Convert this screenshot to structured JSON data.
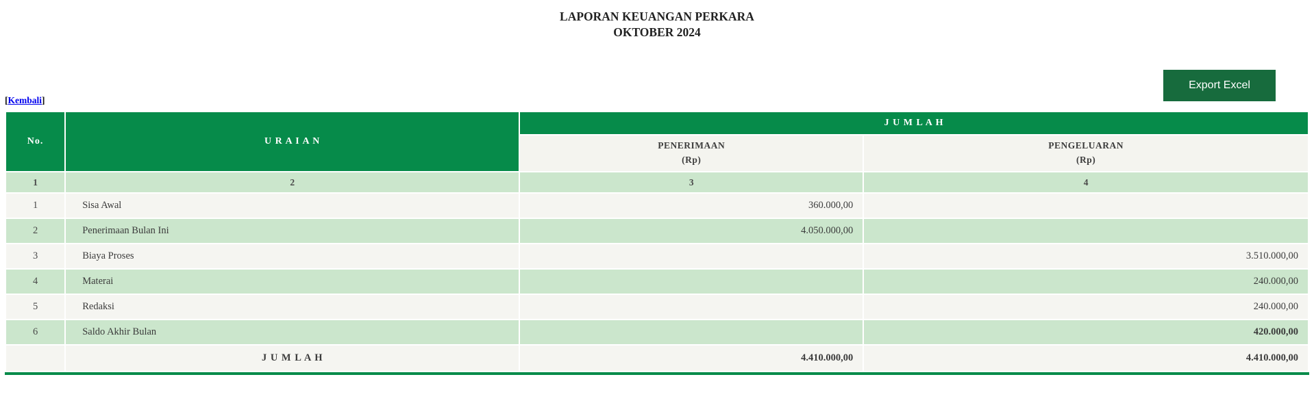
{
  "page": {
    "title_line1": "LAPORAN KEUANGAN PERKARA",
    "title_line2": "OKTOBER 2024",
    "export_button_label": "Export Excel",
    "back_link": {
      "prefix": "[",
      "label": "Kembali",
      "suffix": "]"
    }
  },
  "table": {
    "header": {
      "no": "No.",
      "uraian": "U R A I A N",
      "jumlah": "J U M L A H",
      "penerimaan_line1": "PENERIMAAN",
      "penerimaan_line2": "(Rp)",
      "pengeluaran_line1": "PENGELUARAN",
      "pengeluaran_line2": "(Rp)"
    },
    "column_numbers": [
      "1",
      "2",
      "3",
      "4"
    ],
    "rows": [
      {
        "no": "1",
        "uraian": "Sisa Awal",
        "penerimaan": "360.000,00",
        "pengeluaran": ""
      },
      {
        "no": "2",
        "uraian": "Penerimaan Bulan Ini",
        "penerimaan": "4.050.000,00",
        "pengeluaran": ""
      },
      {
        "no": "3",
        "uraian": "Biaya Proses",
        "penerimaan": "",
        "pengeluaran": "3.510.000,00"
      },
      {
        "no": "4",
        "uraian": "Materai",
        "penerimaan": "",
        "pengeluaran": "240.000,00"
      },
      {
        "no": "5",
        "uraian": "Redaksi",
        "penerimaan": "",
        "pengeluaran": "240.000,00"
      },
      {
        "no": "6",
        "uraian": "Saldo Akhir Bulan",
        "penerimaan": "",
        "pengeluaran": "420.000,00"
      }
    ],
    "footer": {
      "label": "J U M L A H",
      "penerimaan": "4.410.000,00",
      "pengeluaran": "4.410.000,00"
    }
  },
  "colors": {
    "header_green": "#068b4a",
    "button_green": "#176b3d",
    "row_green": "#cbe6cc",
    "row_gray": "#f5f5f1",
    "subheader_bg": "#f4f4ef",
    "link_blue": "#0000EE"
  }
}
